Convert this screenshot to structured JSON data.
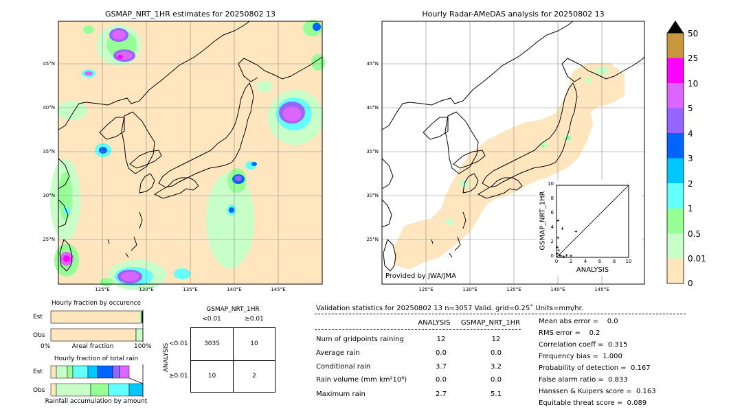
{
  "left_map": {
    "title": "GSMAP_NRT_1HR estimates for 20250802 13",
    "lat_labels": [
      "45°N",
      "40°N",
      "35°N",
      "30°N",
      "25°N"
    ],
    "lon_labels": [
      "125°E",
      "130°E",
      "135°E",
      "140°E",
      "145°E"
    ]
  },
  "right_map": {
    "title": "Hourly Radar-AMeDAS analysis for 20250802 13",
    "lat_labels": [
      "45°N",
      "40°N",
      "35°N",
      "30°N",
      "25°N"
    ],
    "lon_labels": [
      "125°E",
      "130°E",
      "135°E",
      "140°E",
      "145°E"
    ],
    "credit": "Provided by JWA/JMA"
  },
  "colorbar": {
    "labels": [
      "50",
      "25",
      "10",
      "5",
      "4",
      "3",
      "2",
      "1",
      "0.5",
      "0.01",
      "0"
    ],
    "colors": [
      "#c8963c",
      "#ff00ff",
      "#dc64ff",
      "#9664ff",
      "#0064ff",
      "#00c8ff",
      "#64ffff",
      "#96ff96",
      "#c8ffc8",
      "#ffe6be"
    ],
    "over_color": "#000000"
  },
  "occurrence": {
    "title": "Hourly fraction by occurence",
    "rows": [
      "Est",
      "Obs"
    ],
    "xaxis_left": "0%",
    "xaxis_mid": "Areal fraction",
    "xaxis_right": "100%"
  },
  "total_rain": {
    "title": "Hourly fraction of total rain",
    "rows": [
      "Est",
      "Obs"
    ],
    "xlabel": "Rainfall accumulation by amount"
  },
  "contingency": {
    "title": "GSMAP_NRT_1HR",
    "col_headers": [
      "<0.01",
      "≥0.01"
    ],
    "row_axis": "ANALYSIS",
    "row_headers": [
      "<0.01",
      "≥0.01"
    ],
    "cells": [
      [
        "3035",
        "10"
      ],
      [
        "10",
        "2"
      ]
    ]
  },
  "validation": {
    "header": "Validation statistics for 20250802 13  n=3057 Valid. grid=0.25˚ Units=mm/hr.",
    "col_analysis": "ANALYSIS",
    "col_gsmap": "GSMAP_NRT_1HR",
    "rows": [
      {
        "label": "Num of gridpoints raining",
        "analysis": "12",
        "gsmap": "12"
      },
      {
        "label": "Average rain",
        "analysis": "0.0",
        "gsmap": "0.0"
      },
      {
        "label": "Conditional rain",
        "analysis": "3.7",
        "gsmap": "3.2"
      },
      {
        "label": "Rain volume (mm km²10⁶)",
        "analysis": "0.0",
        "gsmap": "0.0"
      },
      {
        "label": "Maximum rain",
        "analysis": "2.7",
        "gsmap": "5.1"
      }
    ],
    "scores": [
      "Mean abs error =    0.0",
      "RMS error =    0.2",
      "Correlation coeff =  0.315",
      "Frequency bias =  1.000",
      "Probability of detection =  0.167",
      "False alarm ratio =  0.833",
      "Hanssen & Kuipers score =  0.163",
      "Equitable threat score =  0.089"
    ]
  },
  "chart_data": {
    "type": "scatter",
    "xlabel": "ANALYSIS",
    "ylabel": "GSMAP_NRT_1HR",
    "xlim": [
      0,
      10
    ],
    "ylim": [
      0,
      10
    ],
    "ticks": [
      "0",
      "2",
      "4",
      "6",
      "8",
      "10"
    ],
    "points": [
      {
        "x": 0.2,
        "y": 5.1
      },
      {
        "x": 0.8,
        "y": 4.0
      },
      {
        "x": 2.7,
        "y": 3.6
      },
      {
        "x": 0.2,
        "y": 2.7
      },
      {
        "x": 0.1,
        "y": 1.4
      },
      {
        "x": 0.3,
        "y": 1.0
      },
      {
        "x": 0.1,
        "y": 0.5
      },
      {
        "x": 0.4,
        "y": 0.3
      },
      {
        "x": 0.6,
        "y": 0.2
      },
      {
        "x": 1.0,
        "y": 0.1
      },
      {
        "x": 1.4,
        "y": 0.3
      },
      {
        "x": 2.0,
        "y": 0.2
      }
    ]
  }
}
